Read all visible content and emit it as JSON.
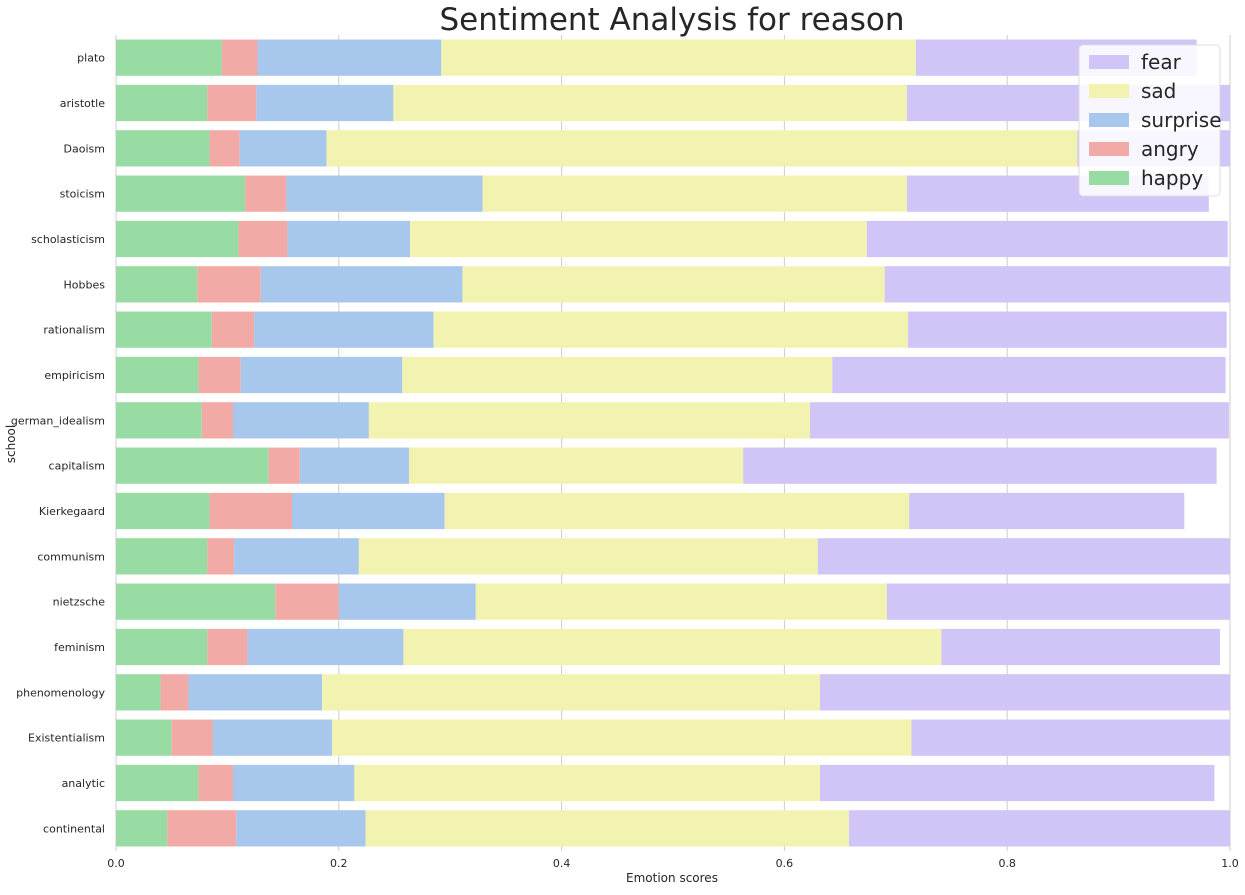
{
  "chart_data": {
    "type": "bar",
    "orientation": "horizontal",
    "stacked": true,
    "title": "Sentiment Analysis for reason",
    "xlabel": "Emotion scores",
    "ylabel": "school",
    "xlim": [
      0,
      1.0
    ],
    "xticks": [
      "0.0",
      "0.2",
      "0.4",
      "0.6",
      "0.8",
      "1.0"
    ],
    "grid": "vertical",
    "legend_position": "top-right",
    "categories": [
      "plato",
      "aristotle",
      "Daoism",
      "stoicism",
      "scholasticism",
      "Hobbes",
      "rationalism",
      "empiricism",
      "german_idealism",
      "capitalism",
      "Kierkegaard",
      "communism",
      "nietzsche",
      "feminism",
      "phenomenology",
      "Existentialism",
      "analytic",
      "continental"
    ],
    "series": [
      {
        "name": "happy",
        "color": "#98dba3",
        "values": [
          0.095,
          0.082,
          0.084,
          0.116,
          0.11,
          0.073,
          0.086,
          0.074,
          0.077,
          0.137,
          0.084,
          0.082,
          0.143,
          0.082,
          0.04,
          0.05,
          0.074,
          0.046
        ]
      },
      {
        "name": "angry",
        "color": "#f2aaa7",
        "values": [
          0.032,
          0.044,
          0.027,
          0.037,
          0.044,
          0.057,
          0.038,
          0.038,
          0.028,
          0.028,
          0.074,
          0.024,
          0.057,
          0.036,
          0.025,
          0.037,
          0.031,
          0.062
        ]
      },
      {
        "name": "surprise",
        "color": "#a8c7ec",
        "values": [
          0.165,
          0.123,
          0.078,
          0.176,
          0.11,
          0.181,
          0.161,
          0.145,
          0.122,
          0.098,
          0.137,
          0.112,
          0.123,
          0.14,
          0.12,
          0.107,
          0.109,
          0.116
        ]
      },
      {
        "name": "sad",
        "color": "#f3f3b1",
        "values": [
          0.426,
          0.461,
          0.674,
          0.381,
          0.41,
          0.379,
          0.426,
          0.386,
          0.396,
          0.3,
          0.417,
          0.412,
          0.369,
          0.483,
          0.447,
          0.52,
          0.418,
          0.434
        ]
      },
      {
        "name": "fear",
        "color": "#d1c4f6",
        "values": [
          0.252,
          0.29,
          0.137,
          0.271,
          0.324,
          0.31,
          0.286,
          0.353,
          0.376,
          0.425,
          0.247,
          0.37,
          0.308,
          0.25,
          0.368,
          0.286,
          0.354,
          0.342
        ]
      }
    ],
    "legend_entries": [
      "fear",
      "sad",
      "surprise",
      "angry",
      "happy"
    ]
  }
}
